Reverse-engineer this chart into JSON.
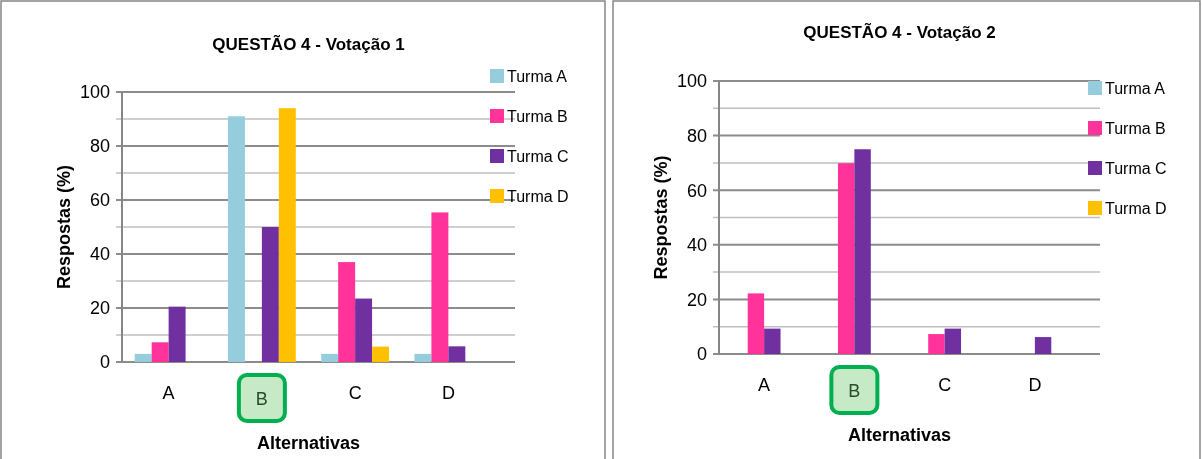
{
  "chart_data": [
    {
      "type": "bar",
      "title": "QUESTÃO 4 - Votação 1",
      "xlabel": "Alternativas",
      "ylabel": "Respostas (%)",
      "categories": [
        "A",
        "B",
        "C",
        "D"
      ],
      "series": [
        {
          "name": "Turma A",
          "color": "#95cddc",
          "values": [
            3,
            91,
            3,
            3
          ]
        },
        {
          "name": "Turma B",
          "color": "#ff3399",
          "values": [
            7.3,
            0,
            37,
            55.4
          ]
        },
        {
          "name": "Turma C",
          "color": "#7030a0",
          "values": [
            20.5,
            50,
            23.5,
            5.8
          ]
        },
        {
          "name": "Turma D",
          "color": "#ffc000",
          "values": [
            0,
            94,
            5.7,
            0
          ]
        }
      ],
      "ylim": [
        0,
        100
      ],
      "yticks": [
        0,
        {
          "value": 10,
          "label": null
        },
        20,
        {
          "value": 30,
          "label": null
        },
        40,
        {
          "value": 50,
          "label": null
        },
        60,
        {
          "value": 70,
          "label": null
        },
        80,
        {
          "value": 90,
          "label": null
        },
        100
      ],
      "grid": "y",
      "legend": "right"
    },
    {
      "type": "bar",
      "title": "QUESTÃO 4 - Votação 2",
      "xlabel": "Alternativas",
      "ylabel": "Respostas (%)",
      "categories": [
        "A",
        "B",
        "C",
        "D"
      ],
      "series": [
        {
          "name": "Turma A",
          "color": "#95cddc",
          "values": [
            0,
            0,
            0,
            0
          ]
        },
        {
          "name": "Turma B",
          "color": "#ff3399",
          "values": [
            22.2,
            69.9,
            7.3,
            0
          ]
        },
        {
          "name": "Turma C",
          "color": "#7030a0",
          "values": [
            9.3,
            75,
            9.3,
            6.2
          ]
        },
        {
          "name": "Turma D",
          "color": "#ffc000",
          "values": [
            0,
            0,
            0,
            0
          ]
        }
      ],
      "ylim": [
        0,
        100
      ],
      "yticks": [
        0,
        {
          "value": 10,
          "label": null
        },
        20,
        {
          "value": 30,
          "label": null
        },
        40,
        {
          "value": 50,
          "label": null
        },
        60,
        {
          "value": 70,
          "label": null
        },
        80,
        {
          "value": 90,
          "label": null
        },
        100
      ],
      "grid": "y",
      "legend": "right"
    }
  ]
}
